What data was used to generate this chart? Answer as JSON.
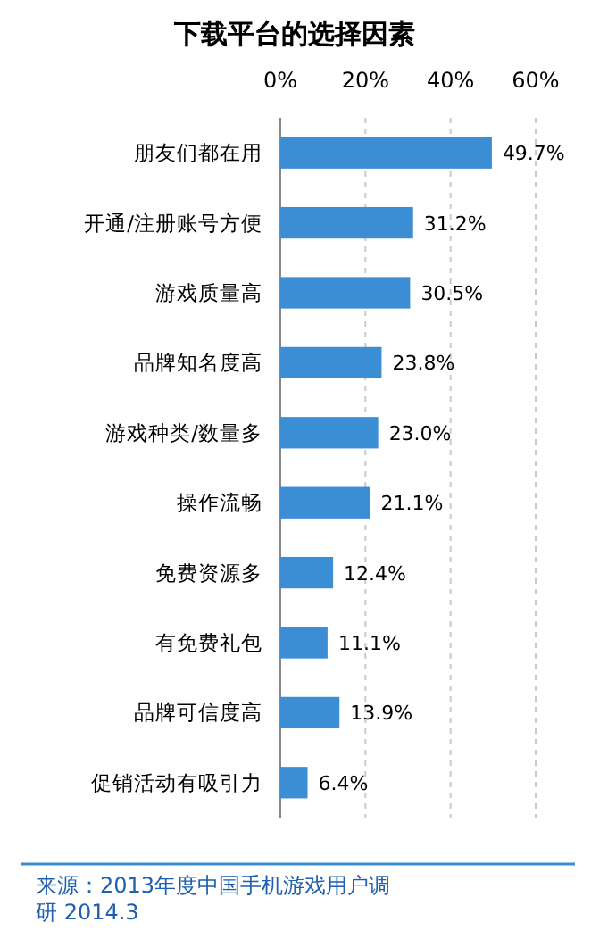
{
  "chart_data": {
    "type": "bar",
    "orientation": "horizontal",
    "title": "下载平台的选择因素",
    "categories": [
      "朋友们都在用",
      "开通/注册账号方便",
      "游戏质量高",
      "品牌知名度高",
      "游戏种类/数量多",
      "操作流畅",
      "免费资源多",
      "有免费礼包",
      "品牌可信度高",
      "促销活动有吸引力"
    ],
    "values": [
      49.7,
      31.2,
      30.5,
      23.8,
      23.0,
      21.1,
      12.4,
      11.1,
      13.9,
      6.4
    ],
    "value_labels": [
      "49.7%",
      "31.2%",
      "30.5%",
      "23.8%",
      "23.0%",
      "21.1%",
      "12.4%",
      "11.1%",
      "13.9%",
      "6.4%"
    ],
    "color": "#3b8dd4",
    "xlim": [
      0,
      60
    ],
    "xticks": [
      {
        "value": 0,
        "label": "0%"
      },
      {
        "value": 20,
        "label": "20%"
      },
      {
        "value": 40,
        "label": "40%"
      },
      {
        "value": 60,
        "label": "60%"
      }
    ],
    "grid": "x",
    "annotations": [
      "来源：2013年度中国手机游戏用户调研 2014.3"
    ]
  }
}
